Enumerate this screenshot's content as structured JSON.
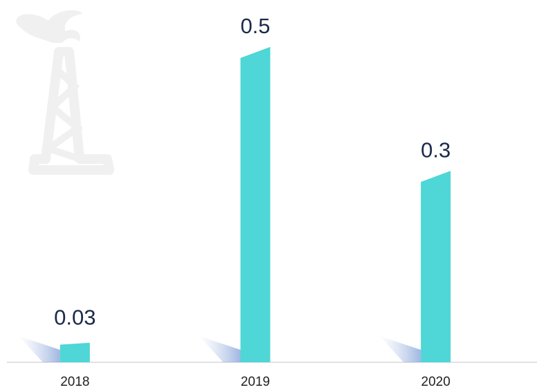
{
  "chart_data": {
    "type": "bar",
    "categories": [
      "2018",
      "2019",
      "2020"
    ],
    "values": [
      0.03,
      0.5,
      0.3
    ],
    "color": "#4fd6d6",
    "ylim": [
      0,
      0.55
    ]
  }
}
